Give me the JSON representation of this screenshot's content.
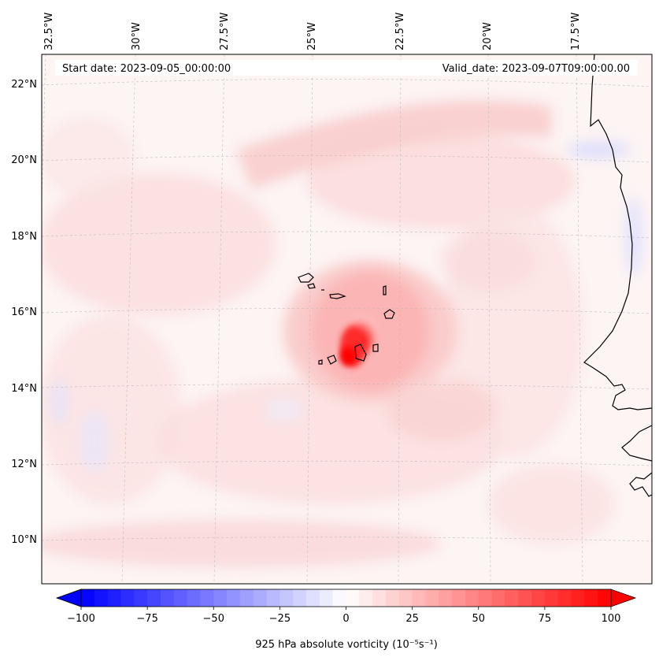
{
  "map": {
    "start_date": "Start date: 2023-09-05_00:00:00",
    "valid_date": "Valid_date: 2023-09-07T09:00:00.00",
    "longitude_labels": [
      "32.5°W",
      "30°W",
      "27.5°W",
      "25°W",
      "22.5°W",
      "20°W",
      "17.5°W"
    ],
    "latitude_labels": [
      "22°N",
      "20°N",
      "18°N",
      "16°N",
      "14°N",
      "12°N",
      "10°N"
    ],
    "field": "925 hPa absolute vorticity",
    "colors": {
      "negative_max": "#0000ff",
      "positive_max": "#ff0000",
      "neutral": "#ffffff",
      "coast": "#000000",
      "grid": "#bbbbbb"
    }
  },
  "colorbar": {
    "label": "925 hPa absolute vorticity (10⁻⁵s⁻¹)",
    "min": -100,
    "max": 100,
    "ticks": [
      {
        "value": -100,
        "label": "−100"
      },
      {
        "value": -75,
        "label": "−75"
      },
      {
        "value": -50,
        "label": "−50"
      },
      {
        "value": -25,
        "label": "−25"
      },
      {
        "value": 0,
        "label": "0"
      },
      {
        "value": 25,
        "label": "25"
      },
      {
        "value": 50,
        "label": "50"
      },
      {
        "value": 75,
        "label": "75"
      },
      {
        "value": 100,
        "label": "100"
      }
    ]
  }
}
